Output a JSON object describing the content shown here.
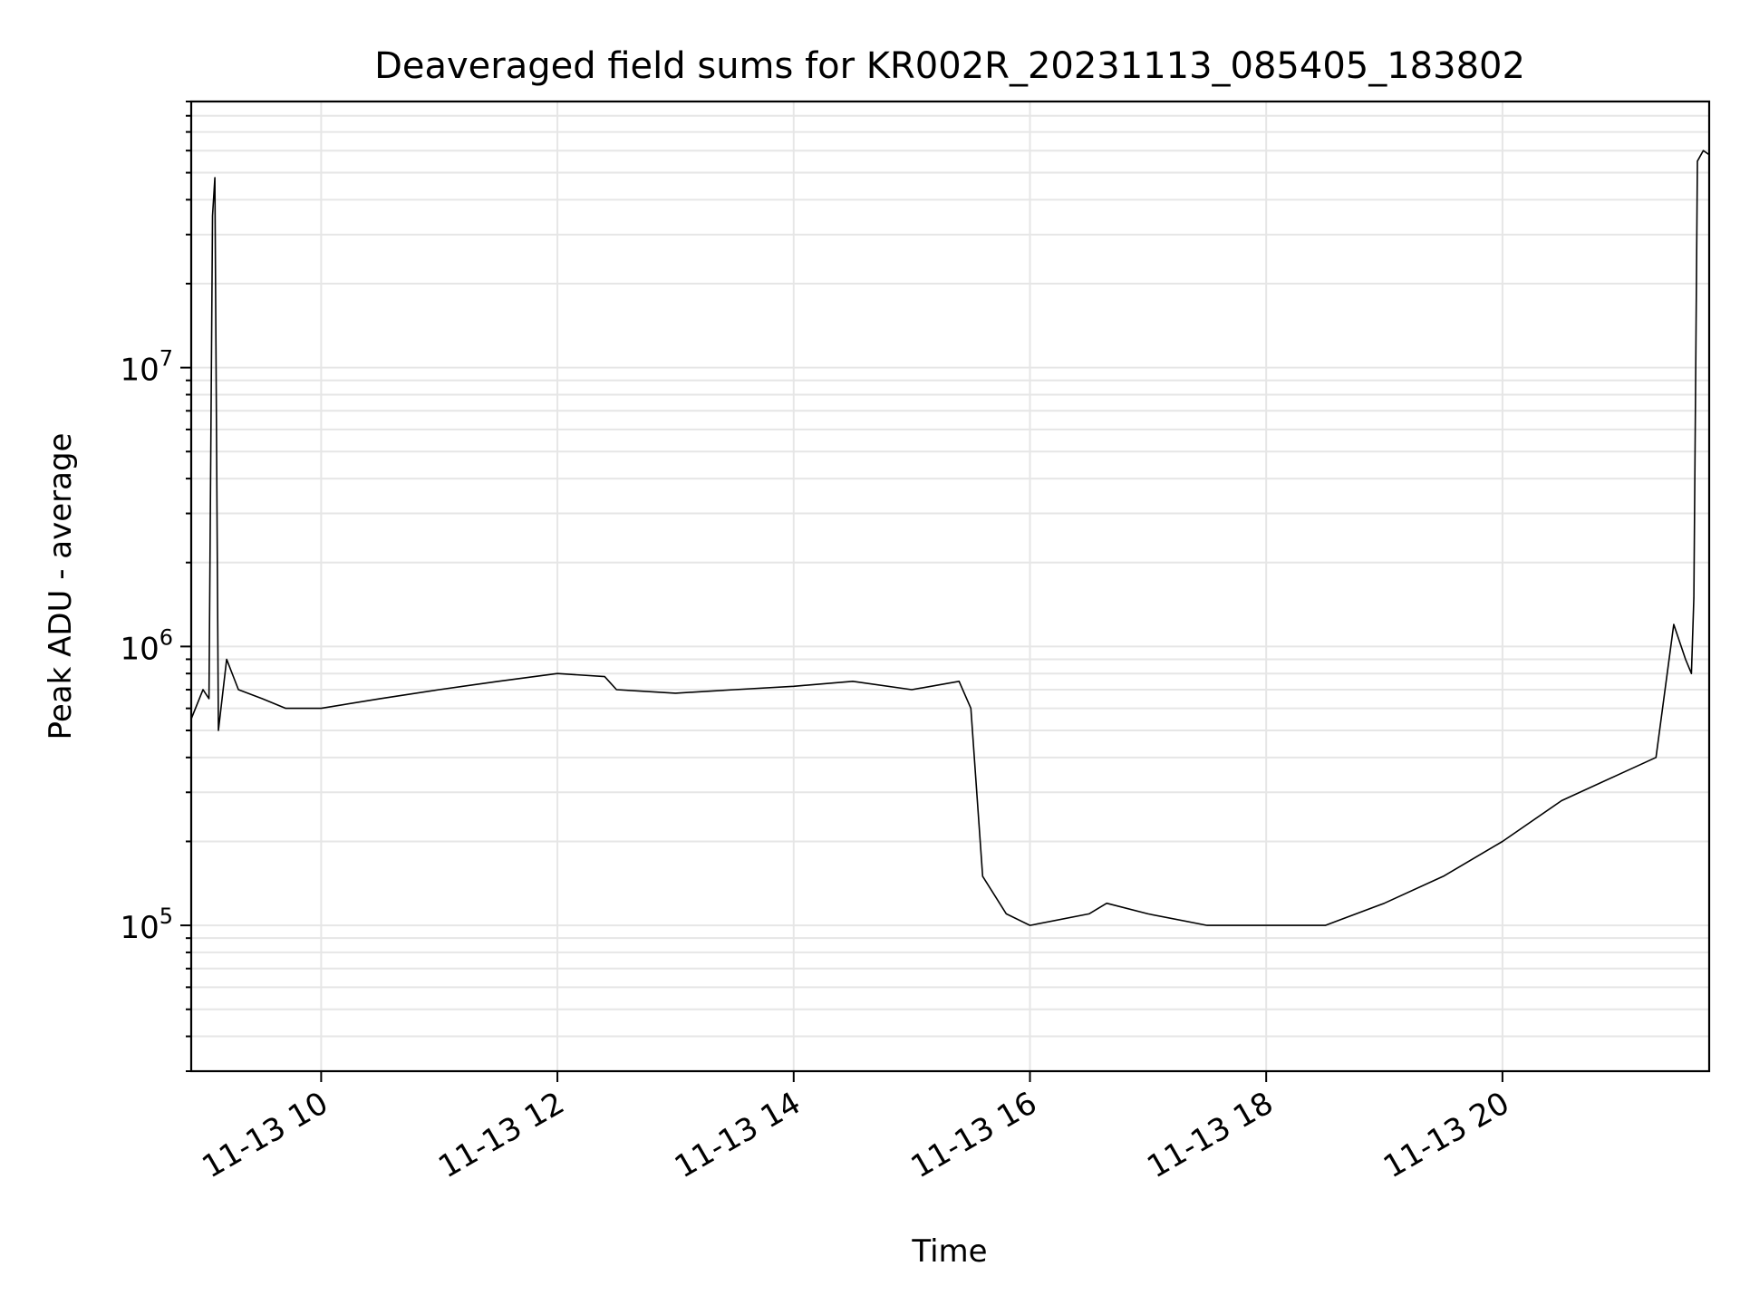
{
  "chart_data": {
    "type": "line",
    "title": "Deaveraged field sums for KR002R_20231113_085405_183802",
    "xlabel": "Time",
    "ylabel": "Peak ADU - average",
    "x_tick_labels": [
      "11-13 10",
      "11-13 12",
      "11-13 14",
      "11-13 16",
      "11-13 18",
      "11-13 20"
    ],
    "x_tick_hours": [
      10,
      12,
      14,
      16,
      18,
      20
    ],
    "y_tick_exponents": [
      5,
      6,
      7
    ],
    "y_tick_base": "10",
    "y_scale": "log",
    "xlim_hours": [
      8.9,
      21.75
    ],
    "ylim": [
      30000,
      90000000
    ],
    "grid": true,
    "line_color": "#000000",
    "grid_color": "#e6e6e6",
    "series": [
      {
        "x_hours": [
          8.9,
          9.0,
          9.05,
          9.08,
          9.1,
          9.13,
          9.2,
          9.3,
          9.5,
          9.7,
          10.0,
          10.5,
          11.0,
          11.5,
          12.0,
          12.4,
          12.5,
          13.0,
          13.5,
          14.0,
          14.5,
          15.0,
          15.4,
          15.5,
          15.6,
          15.8,
          16.0,
          16.5,
          16.65,
          17.0,
          17.5,
          18.0,
          18.5,
          19.0,
          19.5,
          20.0,
          20.5,
          21.0,
          21.3,
          21.45,
          21.55,
          21.6,
          21.62,
          21.65,
          21.7,
          21.75
        ],
        "y": [
          550000,
          700000,
          650000,
          35000000,
          48000000,
          500000,
          900000,
          700000,
          650000,
          600000,
          600000,
          650000,
          700000,
          750000,
          800000,
          780000,
          700000,
          680000,
          700000,
          720000,
          750000,
          700000,
          750000,
          600000,
          150000,
          110000,
          100000,
          110000,
          120000,
          110000,
          100000,
          100000,
          100000,
          120000,
          150000,
          200000,
          280000,
          350000,
          400000,
          1200000,
          900000,
          800000,
          1500000,
          55000000,
          60000000,
          58000000
        ]
      }
    ]
  }
}
